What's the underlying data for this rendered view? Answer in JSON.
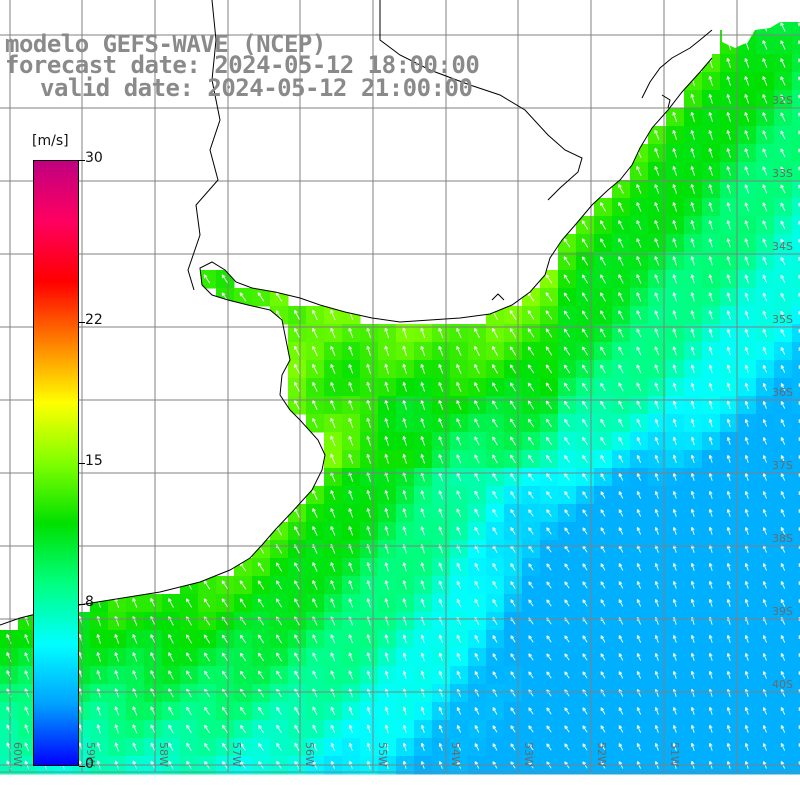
{
  "title": {
    "line1": "modelo GEFS-WAVE (NCEP)",
    "line2": "forecast date: 2024-05-12 18:00:00",
    "line3": "valid date: 2024-05-12 21:00:00"
  },
  "colorbar": {
    "unit": "[m/s]",
    "min": 0,
    "max": 30,
    "tick_labels": [
      "30",
      "22",
      "15",
      "8",
      "0"
    ],
    "tick_values": [
      30,
      22,
      15,
      8,
      0
    ],
    "colors": [
      "#0000ff",
      "#00a0ff",
      "#00ffff",
      "#00ff80",
      "#00e000",
      "#80ff00",
      "#ffff00",
      "#ff8000",
      "#ff0000",
      "#ff0060",
      "#c00080"
    ]
  },
  "map": {
    "lat_labels": [
      "32S",
      "33S",
      "34S",
      "35S",
      "36S",
      "37S",
      "38S",
      "39S",
      "40S"
    ],
    "lon_labels": [
      "60W",
      "59W",
      "58W",
      "57W",
      "56W",
      "55W",
      "54W",
      "53W",
      "52W",
      "51W"
    ],
    "colors": {
      "land": "#ffffff",
      "grid": "#808080",
      "coast": "#000000",
      "arrow": "#ffffff",
      "label": "#6a6a6a"
    },
    "wind_description": "winds from the south-southeast; strongest (~12-14 m/s, green) near the coast, weaker (~4-8 m/s, blue) offshore to the south-east"
  }
}
